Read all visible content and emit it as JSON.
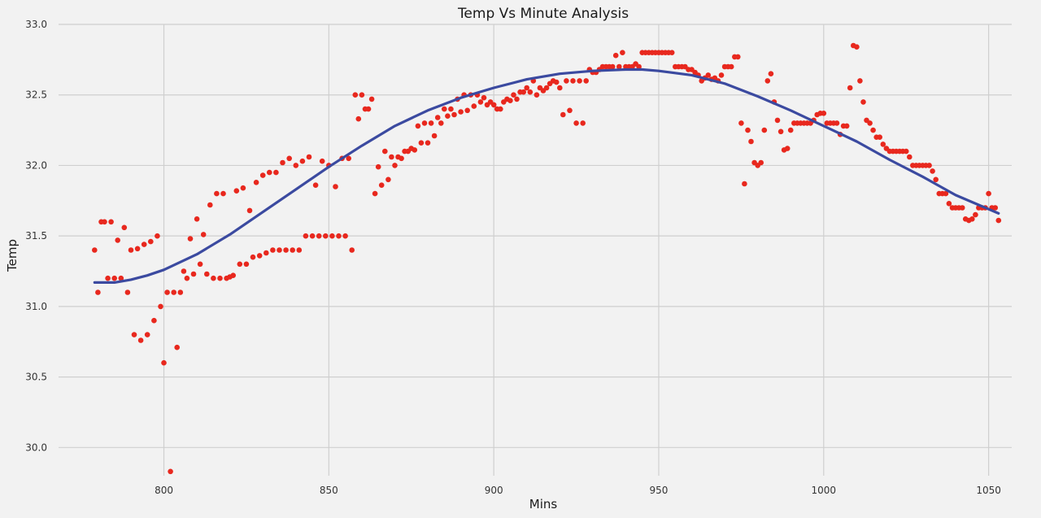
{
  "chart_data": {
    "type": "scatter",
    "title": "Temp Vs Minute Analysis",
    "xlabel": "Mins",
    "ylabel": "Temp",
    "xlim": [
      773,
      1057
    ],
    "ylim": [
      29.8,
      33.0
    ],
    "xticks": [
      800,
      850,
      900,
      950,
      1000,
      1050
    ],
    "xtick_labels": [
      "800",
      "850",
      "900",
      "950",
      "1000",
      "1050"
    ],
    "yticks": [
      30.0,
      30.5,
      31.0,
      31.5,
      32.0,
      32.5,
      33.0
    ],
    "ytick_labels": [
      "30.0",
      "30.5",
      "31.0",
      "31.5",
      "32.0",
      "32.5",
      "33.0"
    ],
    "grid": true,
    "legend": "none",
    "colors": {
      "points": "#e8281e",
      "fit_line": "#3b4aa0",
      "background": "#f2f2f2",
      "grid": "#cfcfcf"
    },
    "series": [
      {
        "kind": "scatter",
        "points": [
          [
            779,
            31.4
          ],
          [
            780,
            31.1
          ],
          [
            781,
            31.6
          ],
          [
            782,
            31.6
          ],
          [
            783,
            31.2
          ],
          [
            784,
            31.6
          ],
          [
            785,
            31.2
          ],
          [
            786,
            31.47
          ],
          [
            787,
            31.2
          ],
          [
            788,
            31.56
          ],
          [
            789,
            31.1
          ],
          [
            790,
            31.4
          ],
          [
            791,
            30.8
          ],
          [
            792,
            31.41
          ],
          [
            793,
            30.76
          ],
          [
            794,
            31.44
          ],
          [
            795,
            30.8
          ],
          [
            796,
            31.46
          ],
          [
            797,
            30.9
          ],
          [
            798,
            31.5
          ],
          [
            799,
            31.0
          ],
          [
            800,
            30.6
          ],
          [
            801,
            31.1
          ],
          [
            802,
            29.83
          ],
          [
            803,
            31.1
          ],
          [
            804,
            30.71
          ],
          [
            805,
            31.1
          ],
          [
            806,
            31.25
          ],
          [
            807,
            31.2
          ],
          [
            808,
            31.48
          ],
          [
            809,
            31.23
          ],
          [
            810,
            31.62
          ],
          [
            811,
            31.3
          ],
          [
            812,
            31.51
          ],
          [
            813,
            31.23
          ],
          [
            814,
            31.72
          ],
          [
            815,
            31.2
          ],
          [
            816,
            31.8
          ],
          [
            817,
            31.2
          ],
          [
            818,
            31.8
          ],
          [
            819,
            31.2
          ],
          [
            820,
            31.21
          ],
          [
            821,
            31.22
          ],
          [
            822,
            31.82
          ],
          [
            823,
            31.3
          ],
          [
            824,
            31.84
          ],
          [
            825,
            31.3
          ],
          [
            826,
            31.68
          ],
          [
            827,
            31.35
          ],
          [
            828,
            31.88
          ],
          [
            829,
            31.36
          ],
          [
            830,
            31.93
          ],
          [
            831,
            31.38
          ],
          [
            832,
            31.95
          ],
          [
            833,
            31.4
          ],
          [
            834,
            31.95
          ],
          [
            835,
            31.4
          ],
          [
            836,
            32.02
          ],
          [
            837,
            31.4
          ],
          [
            838,
            32.05
          ],
          [
            839,
            31.4
          ],
          [
            840,
            32.0
          ],
          [
            841,
            31.4
          ],
          [
            842,
            32.03
          ],
          [
            843,
            31.5
          ],
          [
            844,
            32.06
          ],
          [
            845,
            31.5
          ],
          [
            846,
            31.86
          ],
          [
            847,
            31.5
          ],
          [
            848,
            32.03
          ],
          [
            849,
            31.5
          ],
          [
            850,
            32.0
          ],
          [
            851,
            31.5
          ],
          [
            852,
            31.85
          ],
          [
            853,
            31.5
          ],
          [
            854,
            32.05
          ],
          [
            855,
            31.5
          ],
          [
            856,
            32.05
          ],
          [
            857,
            31.4
          ],
          [
            858,
            32.5
          ],
          [
            859,
            32.33
          ],
          [
            860,
            32.5
          ],
          [
            861,
            32.4
          ],
          [
            862,
            32.4
          ],
          [
            863,
            32.47
          ],
          [
            864,
            31.8
          ],
          [
            865,
            31.99
          ],
          [
            866,
            31.86
          ],
          [
            867,
            32.1
          ],
          [
            868,
            31.9
          ],
          [
            869,
            32.06
          ],
          [
            870,
            32.0
          ],
          [
            871,
            32.06
          ],
          [
            872,
            32.05
          ],
          [
            873,
            32.1
          ],
          [
            874,
            32.1
          ],
          [
            875,
            32.12
          ],
          [
            876,
            32.11
          ],
          [
            877,
            32.28
          ],
          [
            878,
            32.16
          ],
          [
            879,
            32.3
          ],
          [
            880,
            32.16
          ],
          [
            881,
            32.3
          ],
          [
            882,
            32.21
          ],
          [
            883,
            32.34
          ],
          [
            884,
            32.3
          ],
          [
            885,
            32.4
          ],
          [
            886,
            32.35
          ],
          [
            887,
            32.4
          ],
          [
            888,
            32.36
          ],
          [
            889,
            32.47
          ],
          [
            890,
            32.38
          ],
          [
            891,
            32.5
          ],
          [
            892,
            32.39
          ],
          [
            893,
            32.5
          ],
          [
            894,
            32.42
          ],
          [
            895,
            32.5
          ],
          [
            896,
            32.45
          ],
          [
            897,
            32.48
          ],
          [
            898,
            32.43
          ],
          [
            899,
            32.45
          ],
          [
            900,
            32.43
          ],
          [
            901,
            32.4
          ],
          [
            902,
            32.4
          ],
          [
            903,
            32.45
          ],
          [
            904,
            32.47
          ],
          [
            905,
            32.46
          ],
          [
            906,
            32.5
          ],
          [
            907,
            32.47
          ],
          [
            908,
            32.52
          ],
          [
            909,
            32.52
          ],
          [
            910,
            32.55
          ],
          [
            911,
            32.52
          ],
          [
            912,
            32.6
          ],
          [
            913,
            32.5
          ],
          [
            914,
            32.55
          ],
          [
            915,
            32.53
          ],
          [
            916,
            32.55
          ],
          [
            917,
            32.58
          ],
          [
            918,
            32.6
          ],
          [
            919,
            32.59
          ],
          [
            920,
            32.55
          ],
          [
            921,
            32.36
          ],
          [
            922,
            32.6
          ],
          [
            923,
            32.39
          ],
          [
            924,
            32.6
          ],
          [
            925,
            32.3
          ],
          [
            926,
            32.6
          ],
          [
            927,
            32.3
          ],
          [
            928,
            32.6
          ],
          [
            929,
            32.68
          ],
          [
            930,
            32.66
          ],
          [
            931,
            32.66
          ],
          [
            932,
            32.68
          ],
          [
            933,
            32.7
          ],
          [
            934,
            32.7
          ],
          [
            935,
            32.7
          ],
          [
            936,
            32.7
          ],
          [
            937,
            32.78
          ],
          [
            938,
            32.7
          ],
          [
            939,
            32.8
          ],
          [
            940,
            32.7
          ],
          [
            941,
            32.7
          ],
          [
            942,
            32.7
          ],
          [
            943,
            32.72
          ],
          [
            944,
            32.7
          ],
          [
            945,
            32.8
          ],
          [
            946,
            32.8
          ],
          [
            947,
            32.8
          ],
          [
            948,
            32.8
          ],
          [
            949,
            32.8
          ],
          [
            950,
            32.8
          ],
          [
            951,
            32.8
          ],
          [
            952,
            32.8
          ],
          [
            953,
            32.8
          ],
          [
            954,
            32.8
          ],
          [
            955,
            32.7
          ],
          [
            956,
            32.7
          ],
          [
            957,
            32.7
          ],
          [
            958,
            32.7
          ],
          [
            959,
            32.68
          ],
          [
            960,
            32.68
          ],
          [
            961,
            32.66
          ],
          [
            962,
            32.64
          ],
          [
            963,
            32.6
          ],
          [
            964,
            32.62
          ],
          [
            965,
            32.64
          ],
          [
            966,
            32.61
          ],
          [
            967,
            32.62
          ],
          [
            968,
            32.6
          ],
          [
            969,
            32.64
          ],
          [
            970,
            32.7
          ],
          [
            971,
            32.7
          ],
          [
            972,
            32.7
          ],
          [
            973,
            32.77
          ],
          [
            974,
            32.77
          ],
          [
            975,
            32.3
          ],
          [
            976,
            31.87
          ],
          [
            977,
            32.25
          ],
          [
            978,
            32.17
          ],
          [
            979,
            32.02
          ],
          [
            980,
            32.0
          ],
          [
            981,
            32.02
          ],
          [
            982,
            32.25
          ],
          [
            983,
            32.6
          ],
          [
            984,
            32.65
          ],
          [
            985,
            32.45
          ],
          [
            986,
            32.32
          ],
          [
            987,
            32.24
          ],
          [
            988,
            32.11
          ],
          [
            989,
            32.12
          ],
          [
            990,
            32.25
          ],
          [
            991,
            32.3
          ],
          [
            992,
            32.3
          ],
          [
            993,
            32.3
          ],
          [
            994,
            32.3
          ],
          [
            995,
            32.3
          ],
          [
            996,
            32.3
          ],
          [
            997,
            32.32
          ],
          [
            998,
            32.36
          ],
          [
            999,
            32.37
          ],
          [
            1000,
            32.37
          ],
          [
            1001,
            32.3
          ],
          [
            1002,
            32.3
          ],
          [
            1003,
            32.3
          ],
          [
            1004,
            32.3
          ],
          [
            1005,
            32.22
          ],
          [
            1006,
            32.28
          ],
          [
            1007,
            32.28
          ],
          [
            1008,
            32.55
          ],
          [
            1009,
            32.85
          ],
          [
            1010,
            32.84
          ],
          [
            1011,
            32.6
          ],
          [
            1012,
            32.45
          ],
          [
            1013,
            32.32
          ],
          [
            1014,
            32.3
          ],
          [
            1015,
            32.25
          ],
          [
            1016,
            32.2
          ],
          [
            1017,
            32.2
          ],
          [
            1018,
            32.15
          ],
          [
            1019,
            32.12
          ],
          [
            1020,
            32.1
          ],
          [
            1021,
            32.1
          ],
          [
            1022,
            32.1
          ],
          [
            1023,
            32.1
          ],
          [
            1024,
            32.1
          ],
          [
            1025,
            32.1
          ],
          [
            1026,
            32.06
          ],
          [
            1027,
            32.0
          ],
          [
            1028,
            32.0
          ],
          [
            1029,
            32.0
          ],
          [
            1030,
            32.0
          ],
          [
            1031,
            32.0
          ],
          [
            1032,
            32.0
          ],
          [
            1033,
            31.96
          ],
          [
            1034,
            31.9
          ],
          [
            1035,
            31.8
          ],
          [
            1036,
            31.8
          ],
          [
            1037,
            31.8
          ],
          [
            1038,
            31.73
          ],
          [
            1039,
            31.7
          ],
          [
            1040,
            31.7
          ],
          [
            1041,
            31.7
          ],
          [
            1042,
            31.7
          ],
          [
            1043,
            31.62
          ],
          [
            1044,
            31.61
          ],
          [
            1045,
            31.62
          ],
          [
            1046,
            31.65
          ],
          [
            1047,
            31.7
          ],
          [
            1048,
            31.7
          ],
          [
            1049,
            31.7
          ],
          [
            1050,
            31.8
          ],
          [
            1051,
            31.7
          ],
          [
            1052,
            31.7
          ],
          [
            1053,
            31.61
          ]
        ]
      },
      {
        "kind": "line",
        "points": [
          [
            779,
            31.17
          ],
          [
            785,
            31.17
          ],
          [
            790,
            31.19
          ],
          [
            795,
            31.22
          ],
          [
            800,
            31.26
          ],
          [
            810,
            31.37
          ],
          [
            820,
            31.51
          ],
          [
            830,
            31.67
          ],
          [
            840,
            31.83
          ],
          [
            850,
            31.99
          ],
          [
            860,
            32.14
          ],
          [
            870,
            32.28
          ],
          [
            880,
            32.39
          ],
          [
            890,
            32.48
          ],
          [
            900,
            32.55
          ],
          [
            910,
            32.61
          ],
          [
            920,
            32.65
          ],
          [
            930,
            32.67
          ],
          [
            940,
            32.68
          ],
          [
            945,
            32.68
          ],
          [
            950,
            32.67
          ],
          [
            960,
            32.64
          ],
          [
            970,
            32.58
          ],
          [
            980,
            32.49
          ],
          [
            990,
            32.39
          ],
          [
            1000,
            32.28
          ],
          [
            1010,
            32.17
          ],
          [
            1020,
            32.04
          ],
          [
            1030,
            31.92
          ],
          [
            1040,
            31.79
          ],
          [
            1050,
            31.69
          ],
          [
            1053,
            31.66
          ]
        ]
      }
    ]
  }
}
